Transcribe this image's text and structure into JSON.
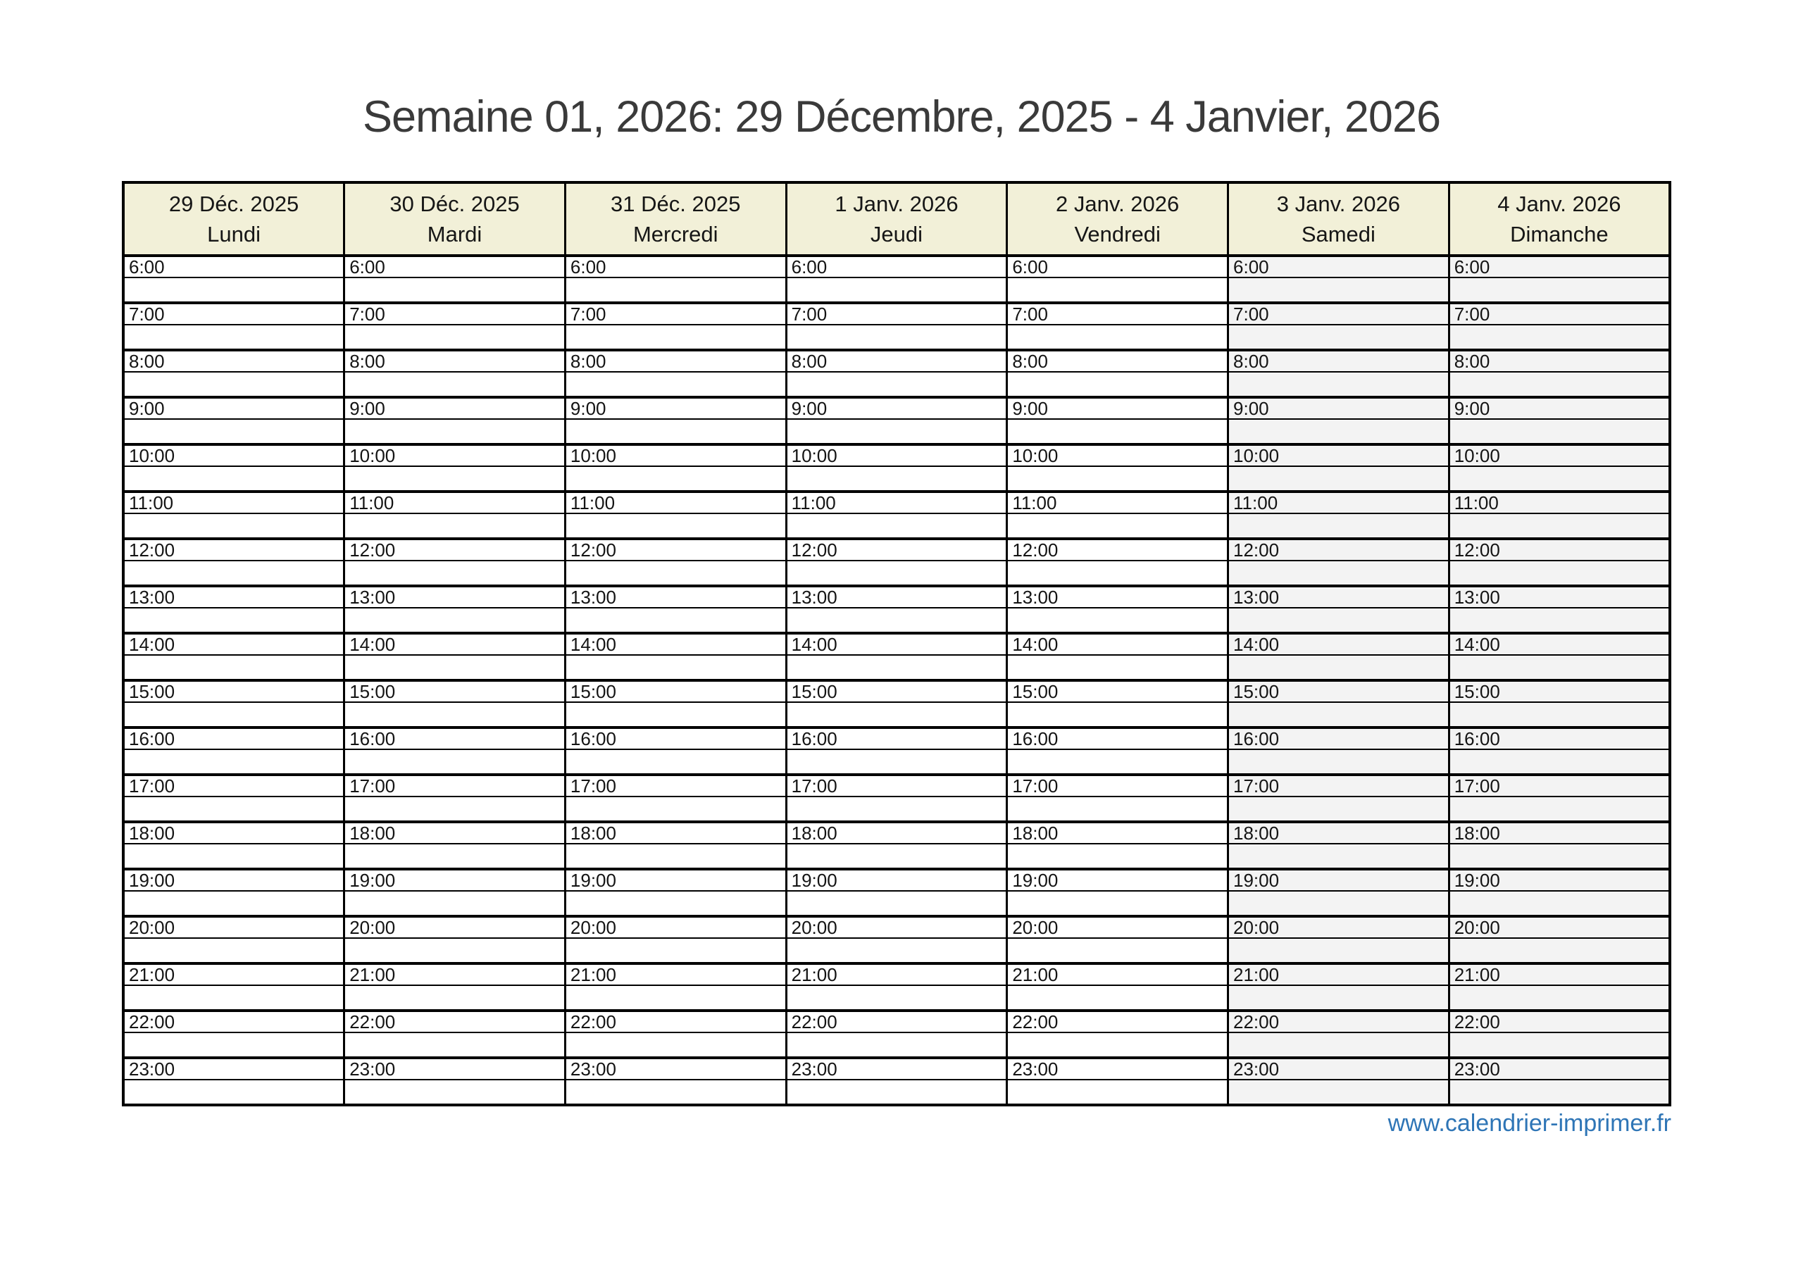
{
  "title": "Semaine 01, 2026: 29 Décembre, 2025 - 4 Janvier, 2026",
  "table": {
    "days": [
      {
        "date": "29 Déc. 2025",
        "name": "Lundi",
        "weekend": false
      },
      {
        "date": "30 Déc. 2025",
        "name": "Mardi",
        "weekend": false
      },
      {
        "date": "31 Déc. 2025",
        "name": "Mercredi",
        "weekend": false
      },
      {
        "date": "1 Janv. 2026",
        "name": "Jeudi",
        "weekend": false
      },
      {
        "date": "2 Janv. 2026",
        "name": "Vendredi",
        "weekend": false
      },
      {
        "date": "3 Janv. 2026",
        "name": "Samedi",
        "weekend": true
      },
      {
        "date": "4 Janv. 2026",
        "name": "Dimanche",
        "weekend": true
      }
    ],
    "hours": [
      "6:00",
      "7:00",
      "8:00",
      "9:00",
      "10:00",
      "11:00",
      "12:00",
      "13:00",
      "14:00",
      "15:00",
      "16:00",
      "17:00",
      "18:00",
      "19:00",
      "20:00",
      "21:00",
      "22:00",
      "23:00"
    ]
  },
  "footer": {
    "link": "www.calendrier-imprimer.fr"
  },
  "colors": {
    "header_bg": "#f2f0d8",
    "weekend_bg": "#f3f3f3",
    "grid_border": "#000000",
    "title_text": "#3a3a3a",
    "link_blue": "#2e75b6"
  }
}
